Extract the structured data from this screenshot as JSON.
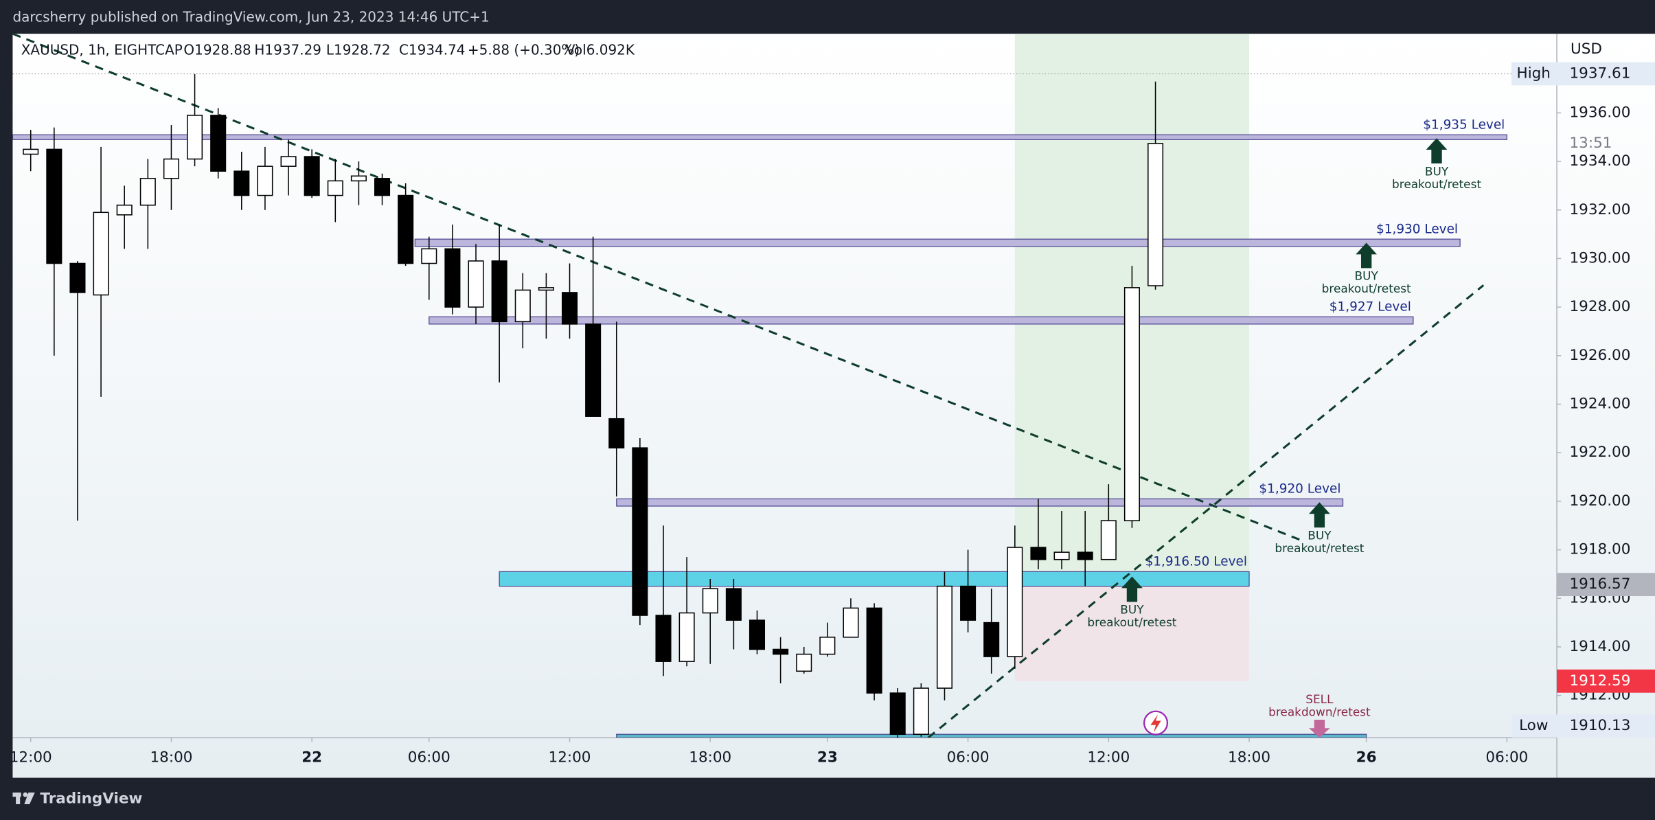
{
  "header": {
    "publisher": "darcsherry published on TradingView.com, Jun 23, 2023 14:46 UTC+1"
  },
  "footer": {
    "brand": "TradingView"
  },
  "chart_data": {
    "type": "candlestick",
    "symbol": "XAUUSD, 1h, EIGHTCAP",
    "ohlc_header": [
      "O1928.88",
      "H1937.29",
      "L1928.72",
      "C1934.74",
      "+5.88 (+0.30%)",
      "Vol6.092K"
    ],
    "y_axis_label": "USD",
    "categories": [
      "12:00",
      null,
      null,
      null,
      null,
      null,
      "18:00",
      null,
      null,
      null,
      null,
      null,
      "22",
      null,
      null,
      null,
      null,
      "06:00",
      null,
      null,
      null,
      null,
      null,
      "12:00",
      null,
      null,
      null,
      null,
      null,
      "18:00",
      null,
      null,
      null,
      null,
      "23",
      null,
      null,
      null,
      null,
      null,
      "06:00",
      null,
      null,
      null,
      null,
      null,
      "12:00",
      null,
      null,
      null,
      null,
      null,
      "18:00",
      null,
      null,
      null,
      null,
      "26",
      null,
      null,
      null,
      null,
      null,
      "06:00"
    ],
    "open": [
      1934.3,
      1934.5,
      1929.8,
      1928.5,
      1931.8,
      1932.2,
      1933.3,
      1934.1,
      1935.9,
      1933.6,
      1932.6,
      1933.8,
      1934.2,
      1932.6,
      1933.2,
      1933.3,
      1932.6,
      1929.8,
      1930.4,
      1928.0,
      1929.9,
      1927.4,
      1928.7,
      1928.6,
      1927.3,
      1923.4,
      1922.2,
      1915.3,
      1913.4,
      1915.4,
      1916.4,
      1915.1,
      1913.9,
      1913.0,
      1913.7,
      1914.4,
      1915.6,
      1912.1,
      1910.4,
      1912.3,
      1916.5,
      1915.0,
      1913.6,
      1918.1,
      1917.6,
      1917.9,
      1917.6,
      1919.2,
      1928.88,
      null,
      null,
      null,
      null,
      null,
      null,
      null,
      null,
      null,
      null,
      null,
      null,
      null,
      null,
      null
    ],
    "high": [
      1935.3,
      1935.4,
      1929.9,
      1934.6,
      1933.0,
      1934.1,
      1935.5,
      1937.6,
      1936.2,
      1934.4,
      1934.6,
      1934.9,
      1934.5,
      1934.1,
      1934.0,
      1933.5,
      1933.1,
      1930.9,
      1931.4,
      1930.6,
      1931.4,
      1929.4,
      1929.4,
      1929.8,
      1930.9,
      1927.4,
      1922.6,
      1919.0,
      1917.7,
      1916.8,
      1916.8,
      1915.5,
      1914.4,
      1914.0,
      1915.0,
      1916.0,
      1915.8,
      1912.3,
      1912.5,
      1917.1,
      1918.0,
      1916.4,
      1919.0,
      1920.1,
      1919.6,
      1919.6,
      1920.7,
      1929.7,
      1937.29,
      null,
      null,
      null,
      null,
      null,
      null,
      null,
      null,
      null,
      null,
      null,
      null,
      null,
      null,
      null
    ],
    "low": [
      1933.6,
      1926.0,
      1919.2,
      1924.3,
      1930.4,
      1930.4,
      1932.0,
      1933.8,
      1933.3,
      1932.0,
      1932.0,
      1932.6,
      1932.5,
      1931.5,
      1932.2,
      1932.2,
      1929.7,
      1928.3,
      1927.7,
      1927.3,
      1924.9,
      1926.3,
      1926.7,
      1926.7,
      1923.5,
      1920.2,
      1914.9,
      1912.8,
      1913.2,
      1913.3,
      1913.9,
      1913.7,
      1912.5,
      1912.9,
      1913.6,
      1914.4,
      1911.8,
      1910.2,
      1910.3,
      1911.8,
      1914.6,
      1912.9,
      1913.1,
      1917.2,
      1917.2,
      1916.5,
      1917.6,
      1918.9,
      1928.72,
      null,
      null,
      null,
      null,
      null,
      null,
      null,
      null,
      null,
      null,
      null,
      null,
      null,
      null,
      null
    ],
    "close": [
      1934.5,
      1929.8,
      1928.6,
      1931.9,
      1932.2,
      1933.3,
      1934.1,
      1935.9,
      1933.6,
      1932.6,
      1933.8,
      1934.2,
      1932.6,
      1933.2,
      1933.4,
      1932.6,
      1929.8,
      1930.4,
      1928.0,
      1929.9,
      1927.4,
      1928.7,
      1928.8,
      1927.3,
      1923.5,
      1922.2,
      1915.3,
      1913.4,
      1915.4,
      1916.4,
      1915.1,
      1913.9,
      1913.7,
      1913.7,
      1914.4,
      1915.6,
      1912.1,
      1910.4,
      1912.3,
      1916.5,
      1915.1,
      1913.6,
      1918.1,
      1917.6,
      1917.9,
      1917.6,
      1919.2,
      1928.8,
      1934.74,
      null,
      null,
      null,
      null,
      null,
      null,
      null,
      null,
      null,
      null,
      null,
      null,
      null,
      null,
      null
    ],
    "up_color": "#ffffff",
    "down_color": "#000000",
    "xlim": [
      -0.77,
      65.13
    ],
    "ylim": [
      1910.26,
      1939.26
    ],
    "yticks": [
      {
        "value": 1912,
        "label": "1912.00"
      },
      {
        "value": 1914,
        "label": "1914.00"
      },
      {
        "value": 1916,
        "label": "1916.00"
      },
      {
        "value": 1918,
        "label": "1918.00"
      },
      {
        "value": 1920,
        "label": "1920.00"
      },
      {
        "value": 1922,
        "label": "1922.00"
      },
      {
        "value": 1924,
        "label": "1924.00"
      },
      {
        "value": 1926,
        "label": "1926.00"
      },
      {
        "value": 1928,
        "label": "1928.00"
      },
      {
        "value": 1930,
        "label": "1930.00"
      },
      {
        "value": 1932,
        "label": "1932.00"
      },
      {
        "value": 1934,
        "label": "1934.00"
      },
      {
        "value": 1936,
        "label": "1936.00"
      }
    ],
    "high_marker": {
      "label": "High",
      "value": 1937.61
    },
    "low_marker": {
      "label": "Low",
      "value": 1910.13
    },
    "countdown": "13:51",
    "position": {
      "entry": 1916.57,
      "stop": 1912.59,
      "from": 42,
      "to": 52,
      "profit_color": "#e3f1e4",
      "loss_color": "#f1e4e8",
      "entry_color": "#b2b5be",
      "stop_color": "#f23645"
    },
    "levels": [
      {
        "label": "$1,935 Level",
        "top": 1935.1,
        "bottom": 1934.9,
        "from": -0.77,
        "to": 63.0,
        "color": "#bcb5dc"
      },
      {
        "label": "$1,930 Level",
        "top": 1930.8,
        "bottom": 1930.5,
        "from": 16.4,
        "to": 61.0,
        "color": "#bcb5dc"
      },
      {
        "label": "$1,927 Level",
        "top": 1927.6,
        "bottom": 1927.3,
        "from": 17.0,
        "to": 59.0,
        "color": "#bcb5dc"
      },
      {
        "label": "$1,920 Level",
        "top": 1920.1,
        "bottom": 1919.8,
        "from": 25.0,
        "to": 56.0,
        "color": "#bcb5dc"
      },
      {
        "label": "$1,916.50 Level",
        "top": 1917.1,
        "bottom": 1916.5,
        "from": 20.0,
        "to": 52.0,
        "color": "#5dd2e6"
      },
      {
        "top": 1910.4,
        "bottom": 1910.26,
        "from": 25.0,
        "to": 57.0,
        "color": "#5bb8c9"
      }
    ],
    "trendlines": [
      {
        "points": [
          [
            -0.77,
            1939.26
          ],
          [
            54.2,
            1918.4
          ]
        ],
        "color": "#0f3d2c"
      },
      {
        "points": [
          [
            38.3,
            1910.26
          ],
          [
            62.0,
            1928.9
          ]
        ],
        "color": "#0f3d2c"
      }
    ],
    "annotations": [
      {
        "action": "BUY",
        "note": "breakout/retest",
        "x": 60.0,
        "price": 1934.96,
        "direction": "up",
        "color": "#0f3d2c"
      },
      {
        "action": "BUY",
        "note": "breakout/retest",
        "x": 57.0,
        "price": 1930.65,
        "direction": "up",
        "color": "#0f3d2c"
      },
      {
        "action": "BUY",
        "note": "breakout/retest",
        "x": 55.0,
        "price": 1919.96,
        "direction": "up",
        "color": "#0f3d2c"
      },
      {
        "action": "BUY",
        "note": "breakout/retest",
        "x": 47.0,
        "price": 1916.9,
        "direction": "up",
        "color": "#0f3d2c"
      },
      {
        "action": "SELL",
        "note": "breakdown/retest",
        "x": 55.0,
        "price": 1910.26,
        "direction": "down",
        "color": "#8a2a4a"
      }
    ]
  }
}
